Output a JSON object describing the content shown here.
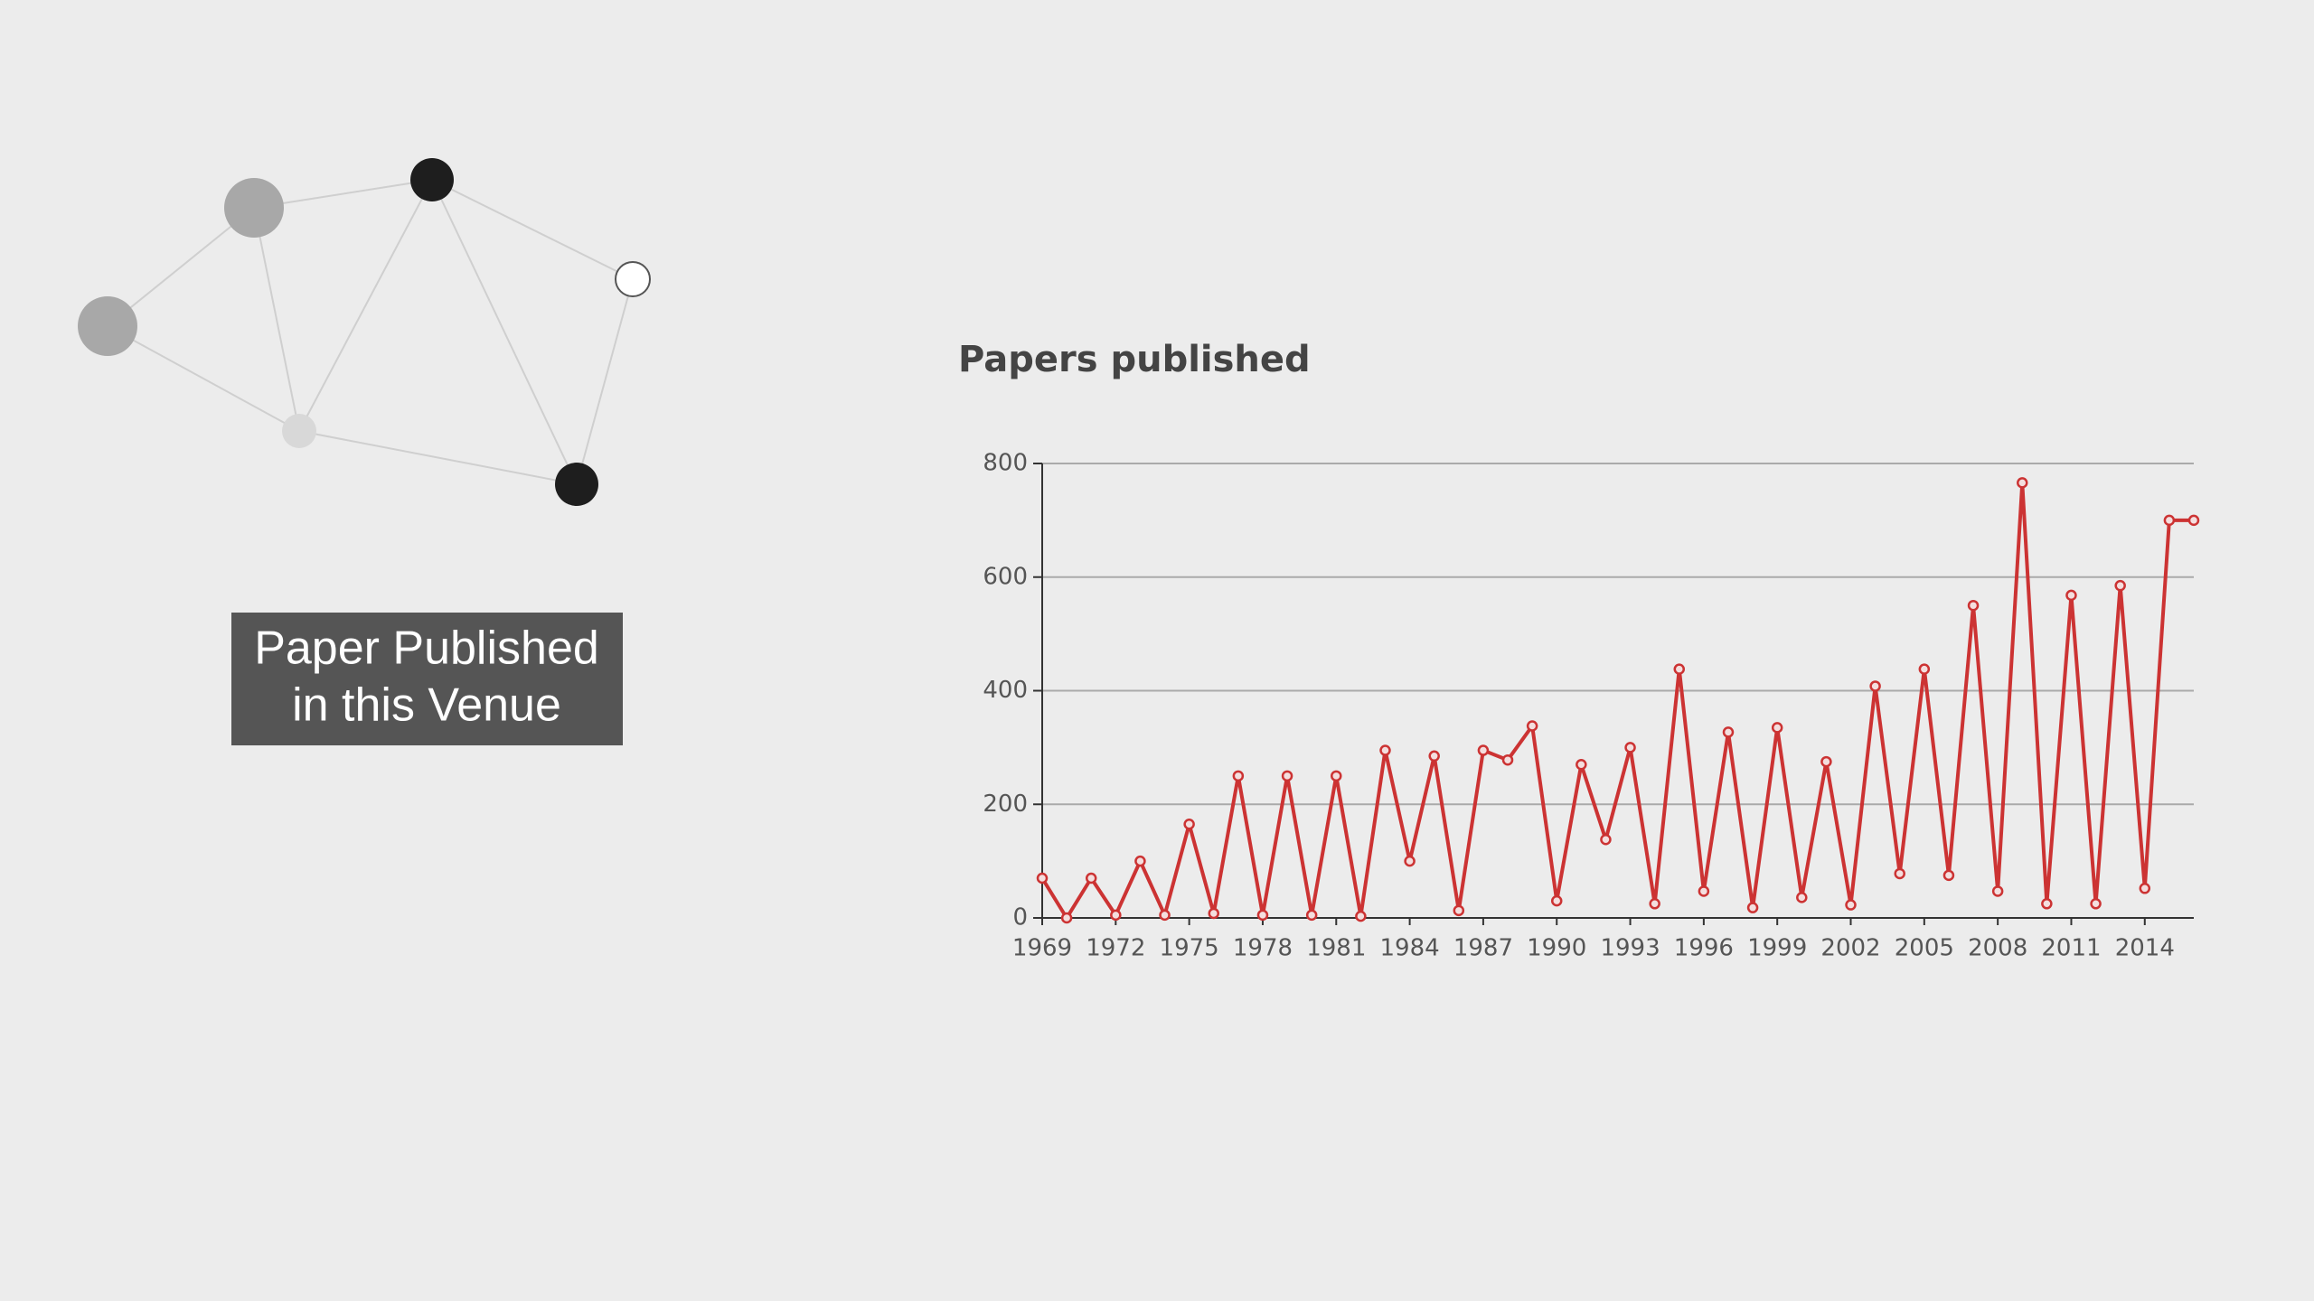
{
  "venue_label": {
    "lines": [
      "Paper Published",
      "in this Venue"
    ]
  },
  "chart_data": {
    "type": "line",
    "title": "Papers published",
    "x": [
      1969,
      1970,
      1971,
      1972,
      1973,
      1974,
      1975,
      1976,
      1977,
      1978,
      1979,
      1980,
      1981,
      1982,
      1983,
      1984,
      1985,
      1986,
      1987,
      1988,
      1989,
      1990,
      1991,
      1992,
      1993,
      1994,
      1995,
      1996,
      1997,
      1998,
      1999,
      2000,
      2001,
      2002,
      2003,
      2004,
      2005,
      2006,
      2007,
      2008,
      2009,
      2010,
      2011,
      2012,
      2013,
      2014,
      2015,
      2016
    ],
    "values": [
      70,
      0,
      70,
      5,
      100,
      5,
      165,
      8,
      250,
      5,
      250,
      5,
      250,
      3,
      295,
      100,
      285,
      13,
      295,
      278,
      338,
      30,
      270,
      138,
      300,
      25,
      438,
      47,
      327,
      18,
      335,
      36,
      275,
      23,
      408,
      78,
      438,
      75,
      550,
      47,
      766,
      25,
      568,
      25,
      585,
      52,
      700,
      700
    ],
    "color": "#cc3333",
    "xlim": [
      1969,
      2016
    ],
    "xticks": [
      1969,
      1972,
      1975,
      1978,
      1981,
      1984,
      1987,
      1990,
      1993,
      1996,
      1999,
      2002,
      2005,
      2008,
      2011,
      2014
    ],
    "ylim": [
      0,
      800
    ],
    "yticks": [
      0,
      200,
      400,
      600,
      800
    ],
    "grid": true
  }
}
